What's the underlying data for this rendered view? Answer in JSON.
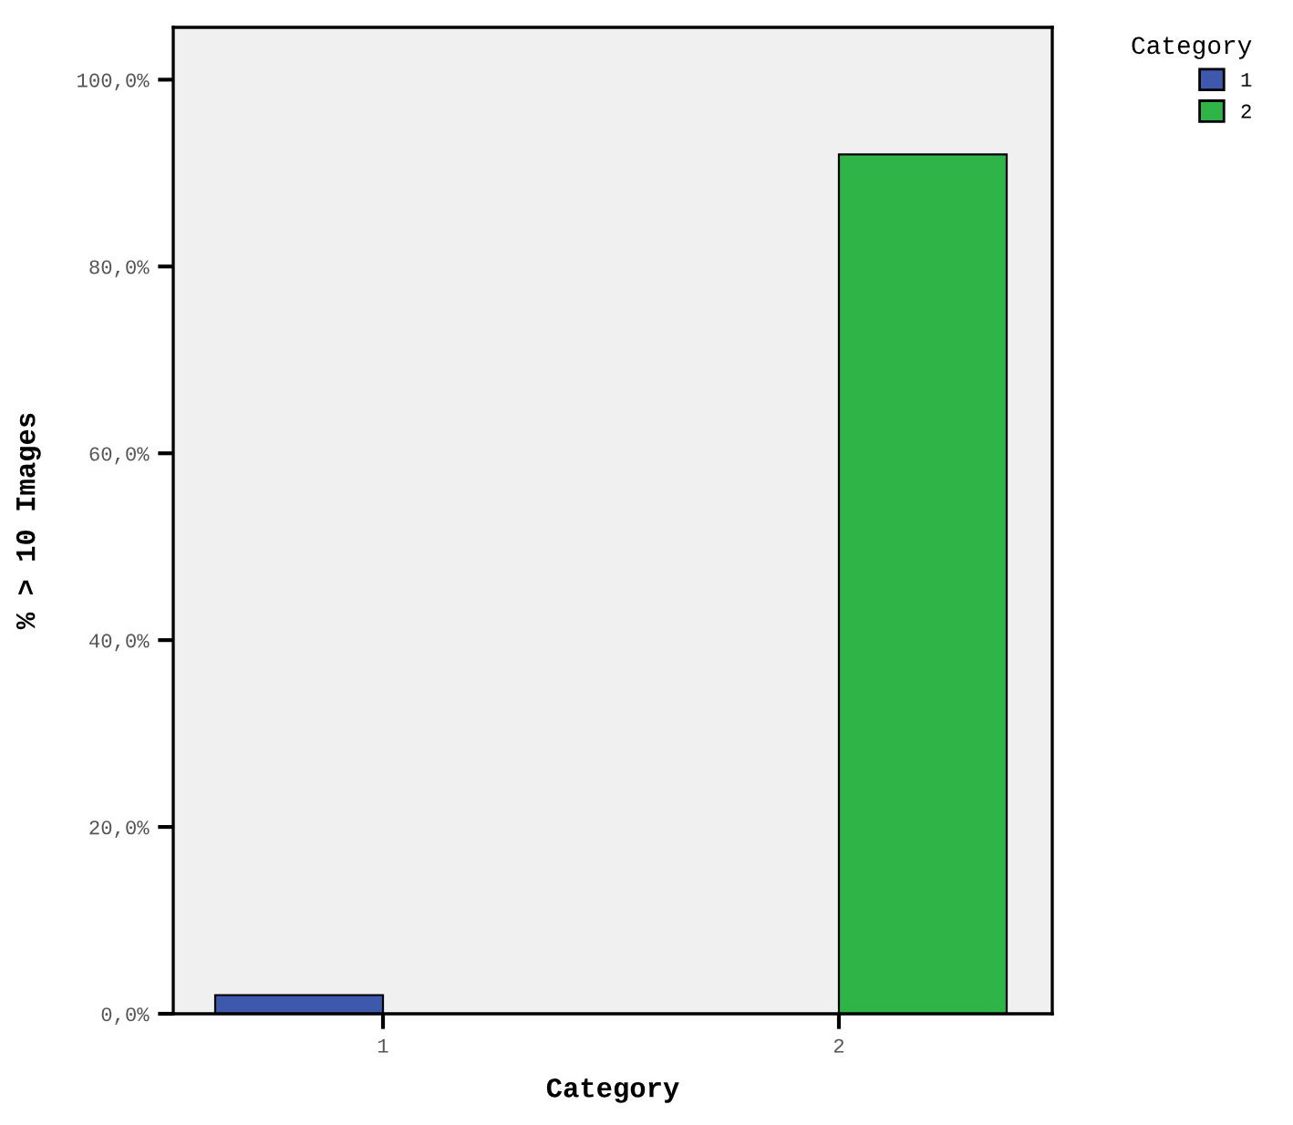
{
  "chart_data": {
    "type": "bar",
    "xlabel": "Category",
    "ylabel": "% > 10 Images",
    "categories": [
      "1",
      "2"
    ],
    "series": [
      {
        "name": "1",
        "color": "#3e58ac",
        "values": [
          2.0,
          null
        ]
      },
      {
        "name": "2",
        "color": "#2fb547",
        "values": [
          null,
          92.0
        ]
      }
    ],
    "ylim": [
      0,
      105.6
    ],
    "yticks": [
      {
        "value": 0,
        "label": "0,0%"
      },
      {
        "value": 20,
        "label": "20,0%"
      },
      {
        "value": 40,
        "label": "40,0%"
      },
      {
        "value": 60,
        "label": "60,0%"
      },
      {
        "value": 80,
        "label": "80,0%"
      },
      {
        "value": 100,
        "label": "100,0%"
      }
    ],
    "legend_title": "Category",
    "legend": "top right",
    "grid": false
  }
}
